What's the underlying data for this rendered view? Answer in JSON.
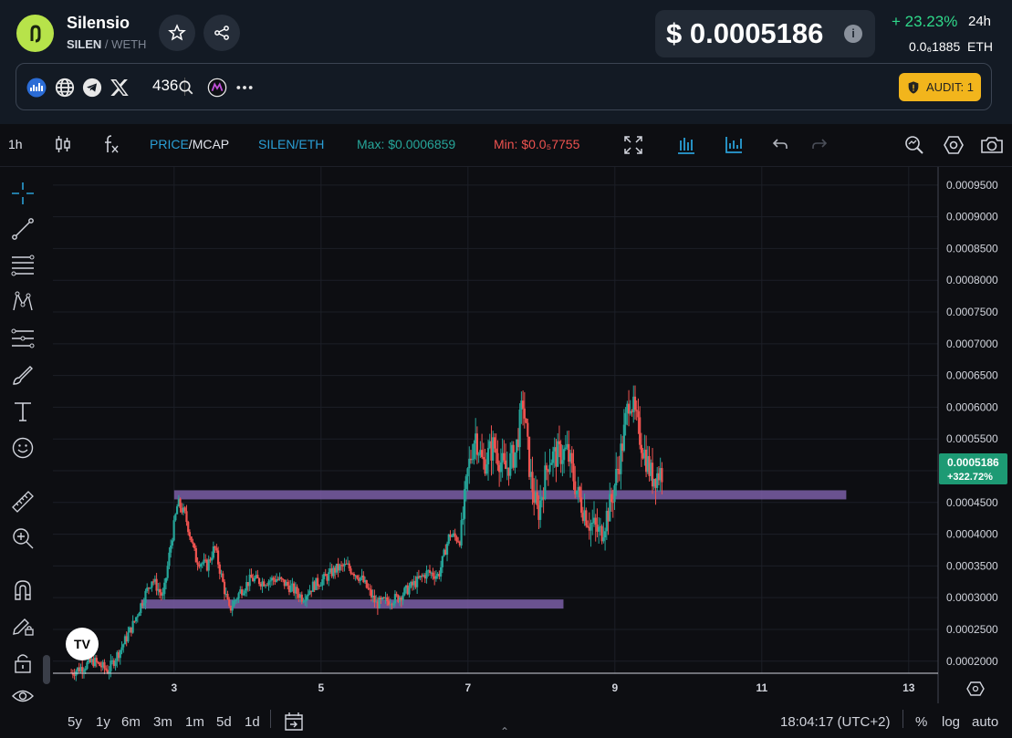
{
  "token": {
    "name": "Silensio",
    "symbol": "SILEN",
    "quote": "WETH",
    "separator": "/"
  },
  "price": {
    "usd": "$ 0.0005186",
    "change": "+ 23.23%",
    "period": "24h",
    "eth": "0.0₆1885",
    "eth_unit": "ETH"
  },
  "links": {
    "x_count": "436",
    "audit": "AUDIT: 1"
  },
  "toolbar": {
    "interval": "1h",
    "price_label": "PRICE",
    "mcap_label": "MCAP",
    "pair_label": "SILEN/ETH",
    "max_label": "Max: $0.0006859",
    "min_label": "Min: $0.0₅7755"
  },
  "bottom": {
    "ranges": [
      "5y",
      "1y",
      "6m",
      "3m",
      "1m",
      "5d",
      "1d"
    ],
    "time": "18:04:17 (UTC+2)",
    "percent": "%",
    "log": "log",
    "auto": "auto"
  },
  "tv_logo": "TV",
  "colors": {
    "up": "#26a69a",
    "down": "#ef5350",
    "level_band": "#7b5ea7",
    "price_tag": "#1d9a74",
    "accent": "#2a9fd6"
  },
  "chart_data": {
    "type": "candlestick",
    "y_ticks": [
      "0.0009500",
      "0.0009000",
      "0.0008500",
      "0.0008000",
      "0.0007500",
      "0.0007000",
      "0.0006500",
      "0.0006000",
      "0.0005500",
      "0.0005000",
      "0.0004500",
      "0.0004000",
      "0.0003500",
      "0.0003000",
      "0.0002500",
      "0.0002000"
    ],
    "x_ticks": [
      "3",
      "5",
      "7",
      "9",
      "11",
      "13"
    ],
    "ylim": [
      0.000181,
      0.0009785
    ],
    "xlim": [
      1.35,
      13.4
    ],
    "last_price": "0.0005186",
    "last_change": "+322.72%",
    "levels": [
      {
        "price": 0.00029,
        "from": 2.55,
        "to": 8.3
      },
      {
        "price": 0.000462,
        "from": 3.0,
        "to": 12.15
      }
    ],
    "close_path": [
      [
        1.6,
        0.000182
      ],
      [
        1.9,
        0.0002
      ],
      [
        2.1,
        0.000185
      ],
      [
        2.3,
        0.000225
      ],
      [
        2.45,
        0.00026
      ],
      [
        2.55,
        0.00029
      ],
      [
        2.7,
        0.00033
      ],
      [
        2.85,
        0.0003
      ],
      [
        2.95,
        0.00038
      ],
      [
        3.05,
        0.00045
      ],
      [
        3.15,
        0.00043
      ],
      [
        3.3,
        0.00036
      ],
      [
        3.45,
        0.00035
      ],
      [
        3.55,
        0.00038
      ],
      [
        3.65,
        0.00033
      ],
      [
        3.75,
        0.00028
      ],
      [
        3.9,
        0.00031
      ],
      [
        4.05,
        0.00033
      ],
      [
        4.2,
        0.000325
      ],
      [
        4.4,
        0.00033
      ],
      [
        4.6,
        0.000315
      ],
      [
        4.75,
        0.0003
      ],
      [
        4.9,
        0.00032
      ],
      [
        5.05,
        0.00033
      ],
      [
        5.2,
        0.000345
      ],
      [
        5.35,
        0.00035
      ],
      [
        5.55,
        0.00033
      ],
      [
        5.75,
        0.00029
      ],
      [
        5.9,
        0.000295
      ],
      [
        6.05,
        0.0003
      ],
      [
        6.25,
        0.00032
      ],
      [
        6.45,
        0.00034
      ],
      [
        6.6,
        0.000335
      ],
      [
        6.75,
        0.0004
      ],
      [
        6.9,
        0.00039
      ],
      [
        7.0,
        0.0005
      ],
      [
        7.1,
        0.00056
      ],
      [
        7.2,
        0.00051
      ],
      [
        7.35,
        0.00054
      ],
      [
        7.5,
        0.0005
      ],
      [
        7.65,
        0.00053
      ],
      [
        7.75,
        0.00061
      ],
      [
        7.85,
        0.00049
      ],
      [
        7.95,
        0.00043
      ],
      [
        8.1,
        0.00052
      ],
      [
        8.35,
        0.00053
      ],
      [
        8.5,
        0.00046
      ],
      [
        8.65,
        0.00042
      ],
      [
        8.8,
        0.0004
      ],
      [
        8.95,
        0.00045
      ],
      [
        9.1,
        0.00054
      ],
      [
        9.2,
        0.00062
      ],
      [
        9.35,
        0.00055
      ],
      [
        9.5,
        0.00049
      ],
      [
        9.65,
        0.0005
      ]
    ]
  }
}
